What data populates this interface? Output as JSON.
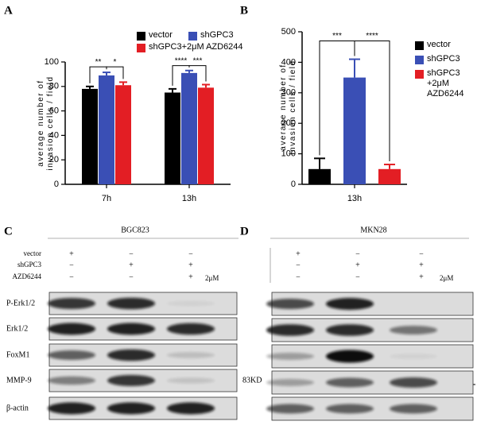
{
  "chart_data": [
    {
      "type": "bar",
      "label": "A",
      "ylabel": "average number of\ninvasion cells / field",
      "categories": [
        "7h",
        "13h"
      ],
      "series": [
        {
          "name": "vector",
          "color": "#000000",
          "values": [
            78,
            75
          ],
          "errors": [
            2,
            3
          ]
        },
        {
          "name": "shGPC3",
          "color": "#3a4fb5",
          "values": [
            89,
            91
          ],
          "errors": [
            2.5,
            2
          ]
        },
        {
          "name": "shGPC3+2μM AZD6244",
          "color": "#e31e24",
          "values": [
            81,
            79
          ],
          "errors": [
            2.5,
            2.5
          ]
        }
      ],
      "annotations": [
        "**",
        "*",
        "****",
        "***"
      ],
      "ylim": [
        0,
        100
      ],
      "yticks": [
        0,
        20,
        40,
        60,
        80,
        100
      ]
    },
    {
      "type": "bar",
      "label": "B",
      "ylabel": "average number of\ninvasion cells / field",
      "categories": [
        "13h"
      ],
      "series": [
        {
          "name": "vector",
          "color": "#000000",
          "values": [
            50
          ],
          "errors": [
            35
          ]
        },
        {
          "name": "shGPC3",
          "color": "#3a4fb5",
          "values": [
            350
          ],
          "errors": [
            60
          ]
        },
        {
          "name": "shGPC3\n+2μM AZD6244",
          "color": "#e31e24",
          "values": [
            50
          ],
          "errors": [
            15
          ]
        }
      ],
      "annotations": [
        "***",
        "****"
      ],
      "ylim": [
        0,
        500
      ],
      "yticks": [
        0,
        100,
        200,
        300,
        400,
        500
      ]
    }
  ],
  "blots": [
    {
      "label": "C",
      "cell_line": "BGC823",
      "conditions": [
        {
          "label": "vector",
          "signs": [
            "+",
            "−",
            "−"
          ]
        },
        {
          "label": "shGPC3",
          "signs": [
            "−",
            "+",
            "+"
          ]
        },
        {
          "label": "AZD6244",
          "signs": [
            "−",
            "−",
            "+"
          ]
        }
      ],
      "dose": "2μM",
      "proteins": [
        "P-Erk1/2",
        "Erk1/2",
        "FoxM1",
        "MMP-9",
        "β-actin"
      ],
      "marker": "83KD"
    },
    {
      "label": "D",
      "cell_line": "MKN28",
      "signs": [
        [
          "+",
          "−",
          "−"
        ],
        [
          "−",
          "+",
          "+"
        ],
        [
          "−",
          "−",
          "+"
        ]
      ],
      "dose": "2μM"
    }
  ]
}
